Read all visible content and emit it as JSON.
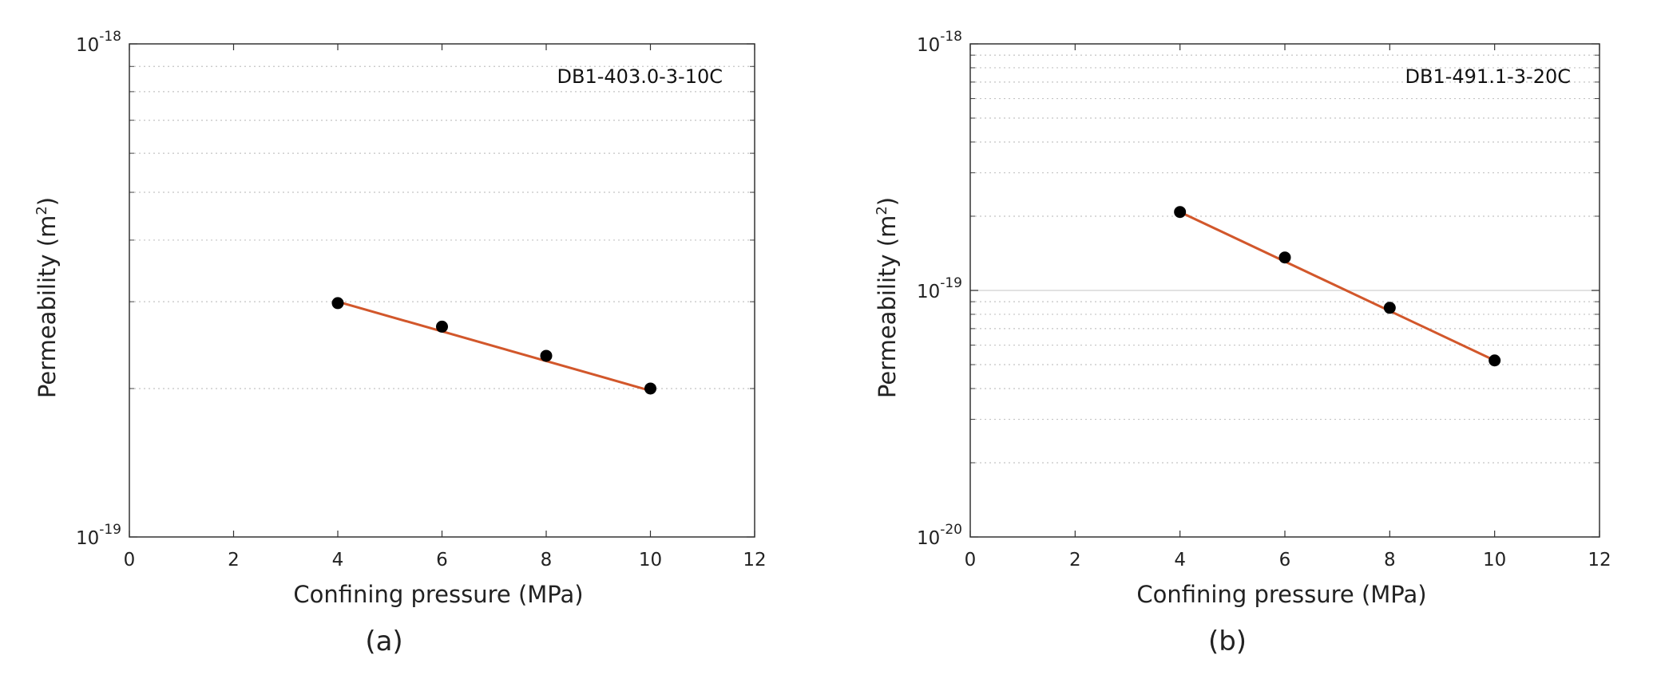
{
  "chart_data": [
    {
      "type": "scatter",
      "panel_caption": "(a)",
      "annotation": "DB1-403.0-3-10C",
      "xlabel": "Confining pressure (MPa)",
      "ylabel": "Permeability (m",
      "ylabel_sup": "2",
      "ylabel_close": ")",
      "xlim": [
        0,
        12
      ],
      "xticks": [
        "0",
        "2",
        "4",
        "6",
        "8",
        "10",
        "12"
      ],
      "yscale": "log",
      "ylim": [
        1e-19,
        1e-18
      ],
      "yticks": [
        {
          "base": "10",
          "exp": "-19"
        },
        {
          "base": "10",
          "exp": "-18"
        }
      ],
      "grid": "y-minor dotted",
      "series": [
        {
          "x": [
            4,
            6,
            8,
            10
          ],
          "y": [
            2.98e-19,
            2.67e-19,
            2.33e-19,
            2e-19
          ],
          "marker_color": "#000000"
        },
        {
          "kind": "fit-line",
          "x": [
            4,
            10
          ],
          "y": [
            3e-19,
            1.98e-19
          ],
          "color": "#d2572b"
        }
      ]
    },
    {
      "type": "scatter",
      "panel_caption": "(b)",
      "annotation": "DB1-491.1-3-20C",
      "xlabel": "Confining pressure (MPa)",
      "ylabel": "Permeability (m",
      "ylabel_sup": "2",
      "ylabel_close": ")",
      "xlim": [
        0,
        12
      ],
      "xticks": [
        "0",
        "2",
        "4",
        "6",
        "8",
        "10",
        "12"
      ],
      "yscale": "log",
      "ylim": [
        1e-20,
        1e-18
      ],
      "yticks": [
        {
          "base": "10",
          "exp": "-20"
        },
        {
          "base": "10",
          "exp": "-19"
        },
        {
          "base": "10",
          "exp": "-18"
        }
      ],
      "grid": "y-minor dotted",
      "series": [
        {
          "x": [
            4,
            6,
            8,
            10
          ],
          "y": [
            2.08e-19,
            1.36e-19,
            8.5e-20,
            5.2e-20
          ],
          "marker_color": "#000000"
        },
        {
          "kind": "fit-line",
          "x": [
            4,
            10
          ],
          "y": [
            2.08e-19,
            5.2e-20
          ],
          "color": "#d2572b"
        }
      ]
    }
  ]
}
